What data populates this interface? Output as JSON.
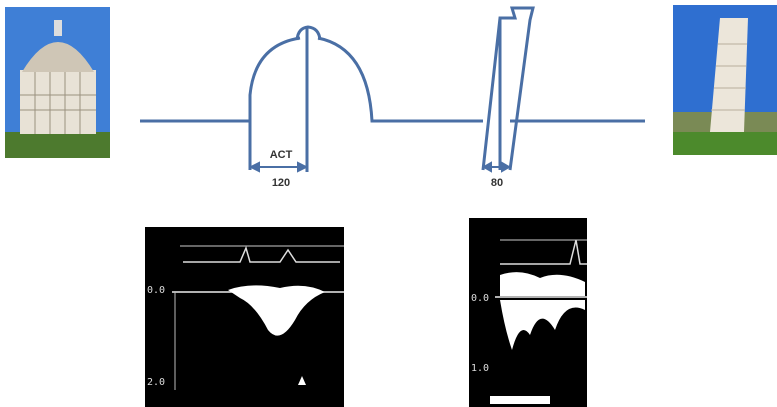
{
  "annotations": {
    "act_label": "ACT",
    "baptistery_width": "120",
    "tower_width": "80"
  },
  "doppler": {
    "left": {
      "labels": [
        "0.0",
        "2.0"
      ]
    },
    "right": {
      "labels": [
        "0.0",
        "1.0"
      ]
    }
  }
}
